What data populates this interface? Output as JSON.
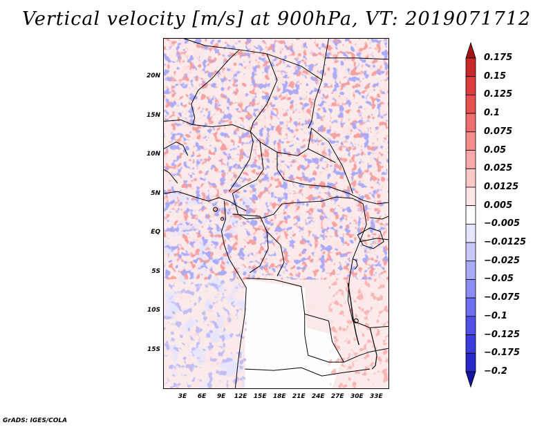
{
  "title": "Vertical velocity [m/s] at 900hPa, VT: 2019071712",
  "credit": "GrADS: IGES/COLA",
  "map": {
    "lon_range": [
      0,
      35
    ],
    "lat_range": [
      -20,
      25
    ],
    "lat_ticks": [
      {
        "value": 20,
        "label": "20N"
      },
      {
        "value": 15,
        "label": "15N"
      },
      {
        "value": 10,
        "label": "10N"
      },
      {
        "value": 5,
        "label": "5N"
      },
      {
        "value": 0,
        "label": "EQ"
      },
      {
        "value": -5,
        "label": "5S"
      },
      {
        "value": -10,
        "label": "10S"
      },
      {
        "value": -15,
        "label": "15S"
      }
    ],
    "lon_ticks": [
      {
        "value": 3,
        "label": "3E"
      },
      {
        "value": 6,
        "label": "6E"
      },
      {
        "value": 9,
        "label": "9E"
      },
      {
        "value": 12,
        "label": "12E"
      },
      {
        "value": 15,
        "label": "15E"
      },
      {
        "value": 18,
        "label": "18E"
      },
      {
        "value": 21,
        "label": "21E"
      },
      {
        "value": 24,
        "label": "24E"
      },
      {
        "value": 27,
        "label": "27E"
      },
      {
        "value": 30,
        "label": "30E"
      },
      {
        "value": 33,
        "label": "33E"
      }
    ]
  },
  "colorbar": {
    "levels": [
      "0.175",
      "0.15",
      "0.125",
      "0.1",
      "0.075",
      "0.05",
      "0.025",
      "0.0125",
      "0.005",
      "−0.005",
      "−0.0125",
      "−0.025",
      "−0.05",
      "−0.075",
      "−0.1",
      "−0.125",
      "−0.175",
      "−0.2"
    ],
    "colors": [
      "#a01414",
      "#c82828",
      "#dc3c3c",
      "#e65050",
      "#f06e6e",
      "#f58c8c",
      "#faaaaa",
      "#fcc8c8",
      "#fee6e6",
      "#ffffff",
      "#e6e6fe",
      "#c8c8fc",
      "#aaaafa",
      "#8c8cf5",
      "#6e6ef0",
      "#5050e6",
      "#3c3cdc",
      "#2828c8",
      "#1414a0"
    ]
  }
}
